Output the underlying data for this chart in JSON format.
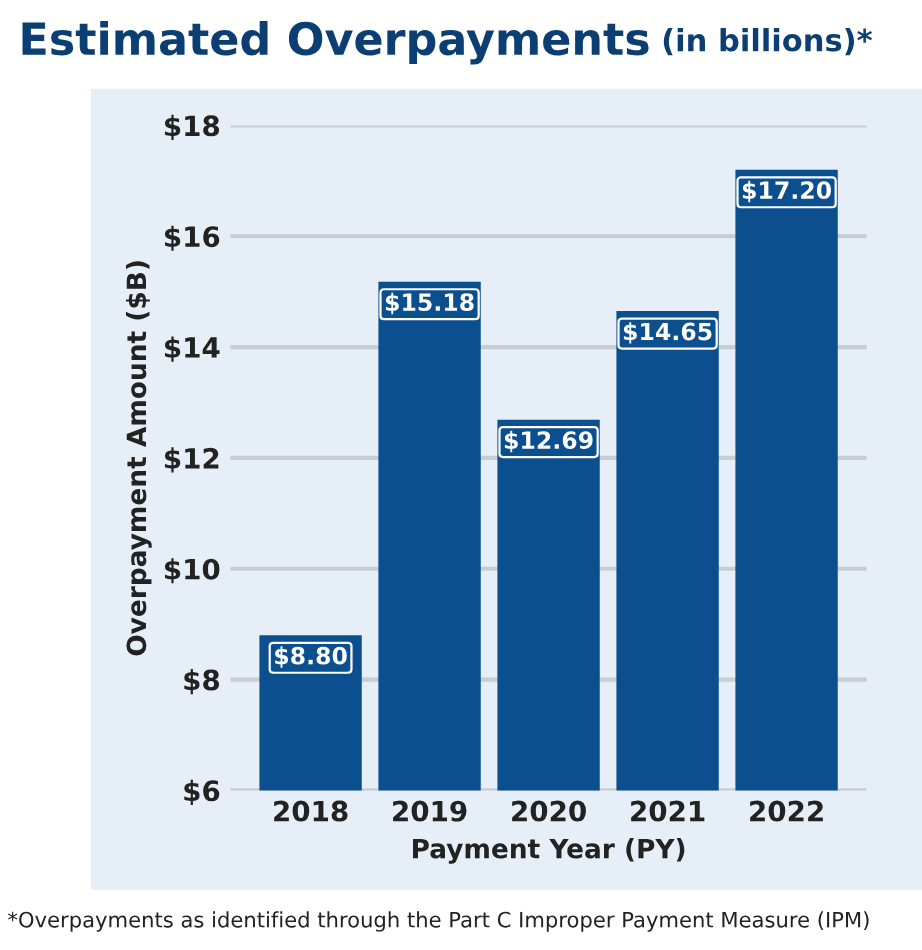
{
  "chart_data": {
    "type": "bar",
    "title": "Estimated Overpayments",
    "subtitle": "(in billions)*",
    "xlabel": "Payment Year (PY)",
    "ylabel": "Overpayment Amount ($B)",
    "categories": [
      "2018",
      "2019",
      "2020",
      "2021",
      "2022"
    ],
    "values": [
      8.8,
      15.18,
      12.69,
      14.65,
      17.2
    ],
    "value_labels": [
      "$8.80",
      "$15.18",
      "$12.69",
      "$14.65",
      "$17.20"
    ],
    "color": "#0b4f8f",
    "ylim": [
      6,
      18
    ],
    "yticks": [
      {
        "value": 6,
        "label": "$6"
      },
      {
        "value": 8,
        "label": "$8"
      },
      {
        "value": 10,
        "label": "$10"
      },
      {
        "value": 12,
        "label": "$12"
      },
      {
        "value": 14,
        "label": "$14"
      },
      {
        "value": 16,
        "label": "$16"
      },
      {
        "value": 18,
        "label": "$18"
      }
    ],
    "grid": "y",
    "legend": false,
    "annotations": [
      "*Overpayments as identified through the Part C Improper Payment Measure (IPM)"
    ]
  }
}
